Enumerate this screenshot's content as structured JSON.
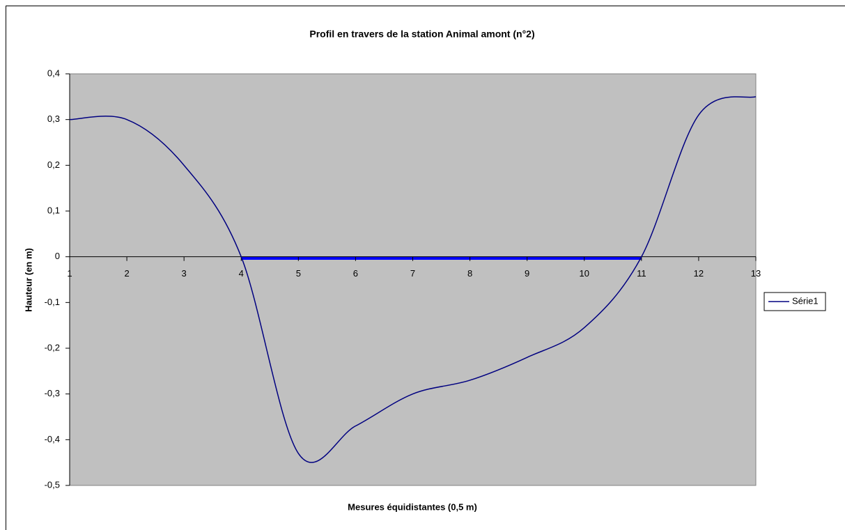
{
  "chart_data": {
    "type": "line",
    "title": "Profil en travers de la station Animal amont (n°2)",
    "x_label": "Mesures équidistantes (0,5 m)",
    "y_label": "Hauteur (en m)",
    "x": [
      1,
      2,
      3,
      4,
      5,
      6,
      7,
      8,
      9,
      10,
      11,
      12,
      13
    ],
    "series": [
      {
        "name": "Série1",
        "color": "#000080",
        "values": [
          0.3,
          0.3,
          0.2,
          0.0,
          -0.43,
          -0.37,
          -0.3,
          -0.27,
          -0.22,
          -0.155,
          0.0,
          0.31,
          0.35
        ]
      }
    ],
    "xlim": [
      1,
      13
    ],
    "xticks": [
      1,
      2,
      3,
      4,
      5,
      6,
      7,
      8,
      9,
      10,
      11,
      12,
      13
    ],
    "ylim": [
      -0.5,
      0.4
    ],
    "yticks": [
      {
        "value": -0.5,
        "label": "-0,5"
      },
      {
        "value": -0.4,
        "label": "-0,4"
      },
      {
        "value": -0.3,
        "label": "-0,3"
      },
      {
        "value": -0.2,
        "label": "-0,2"
      },
      {
        "value": -0.1,
        "label": "-0,1"
      },
      0,
      {
        "value": 0.1,
        "label": "0,1"
      },
      {
        "value": 0.2,
        "label": "0,2"
      },
      {
        "value": 0.3,
        "label": "0,3"
      },
      {
        "value": 0.4,
        "label": "0,4"
      }
    ],
    "grid": false,
    "legend": "right"
  }
}
